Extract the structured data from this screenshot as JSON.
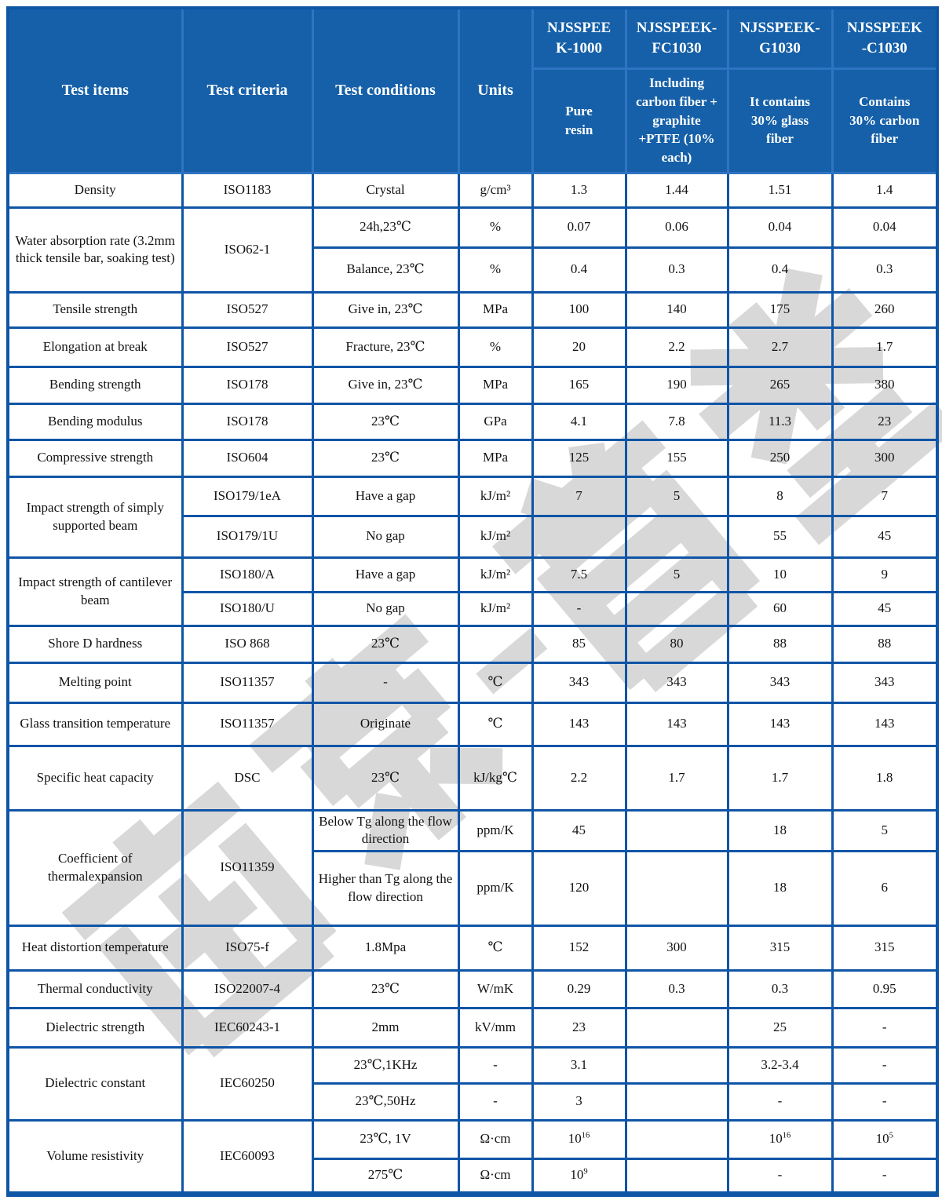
{
  "watermark": {
    "text": "南京-首塑"
  },
  "table": {
    "header": {
      "col_items": "Test items",
      "col_criteria": "Test criteria",
      "col_conditions": "Test conditions",
      "col_units": "Units",
      "products": [
        {
          "name": "NJSSPEE\nK-1000",
          "desc": "Pure\nresin"
        },
        {
          "name": "NJSSPEEK-\nFC1030",
          "desc": "Including\ncarbon fiber +\ngraphite\n+PTFE (10%\neach)"
        },
        {
          "name": "NJSSPEEK-\nG1030",
          "desc": "It contains\n30% glass\nfiber"
        },
        {
          "name": "NJSSPEEK\n-C1030",
          "desc": "Contains\n30% carbon\nfiber"
        }
      ]
    },
    "rows": [
      {
        "cells": [
          {
            "t": "Density"
          },
          {
            "t": "ISO1183"
          },
          {
            "t": "Crystal"
          },
          {
            "t": "g/cm³"
          },
          {
            "t": "1.3"
          },
          {
            "t": "1.44"
          },
          {
            "t": "1.51"
          },
          {
            "t": "1.4"
          }
        ]
      },
      {
        "cells": [
          {
            "t": "Water absorption rate (3.2mm thick tensile bar, soaking test)",
            "rs": 2
          },
          {
            "t": "ISO62-1",
            "rs": 2
          },
          {
            "t": "24h,23℃"
          },
          {
            "t": "%"
          },
          {
            "t": "0.07"
          },
          {
            "t": "0.06"
          },
          {
            "t": "0.04"
          },
          {
            "t": "0.04"
          }
        ]
      },
      {
        "cells": [
          {
            "t": "Balance, 23℃"
          },
          {
            "t": "%"
          },
          {
            "t": "0.4"
          },
          {
            "t": "0.3"
          },
          {
            "t": "0.4"
          },
          {
            "t": "0.3"
          }
        ]
      },
      {
        "cells": [
          {
            "t": "Tensile strength"
          },
          {
            "t": "ISO527"
          },
          {
            "t": "Give in, 23℃"
          },
          {
            "t": "MPa"
          },
          {
            "t": "100"
          },
          {
            "t": "140"
          },
          {
            "t": "175"
          },
          {
            "t": "260"
          }
        ]
      },
      {
        "cells": [
          {
            "t": "Elongation at break"
          },
          {
            "t": "ISO527"
          },
          {
            "t": "Fracture, 23℃"
          },
          {
            "t": "%"
          },
          {
            "t": "20"
          },
          {
            "t": "2.2"
          },
          {
            "t": "2.7"
          },
          {
            "t": "1.7"
          }
        ]
      },
      {
        "cells": [
          {
            "t": "Bending strength"
          },
          {
            "t": "ISO178"
          },
          {
            "t": "Give in, 23℃"
          },
          {
            "t": "MPa"
          },
          {
            "t": "165"
          },
          {
            "t": "190"
          },
          {
            "t": "265"
          },
          {
            "t": "380"
          }
        ]
      },
      {
        "cells": [
          {
            "t": "Bending modulus"
          },
          {
            "t": "ISO178"
          },
          {
            "t": "23℃"
          },
          {
            "t": "GPa"
          },
          {
            "t": "4.1"
          },
          {
            "t": "7.8"
          },
          {
            "t": "11.3"
          },
          {
            "t": "23"
          }
        ]
      },
      {
        "cells": [
          {
            "t": "Compressive strength"
          },
          {
            "t": "ISO604"
          },
          {
            "t": "23℃"
          },
          {
            "t": "MPa"
          },
          {
            "t": "125"
          },
          {
            "t": "155"
          },
          {
            "t": "250"
          },
          {
            "t": "300"
          }
        ]
      },
      {
        "cells": [
          {
            "t": "Impact strength of simply supported beam",
            "rs": 2
          },
          {
            "t": "ISO179/1eA"
          },
          {
            "t": "Have a gap"
          },
          {
            "t": "kJ/m²"
          },
          {
            "t": "7"
          },
          {
            "t": "5"
          },
          {
            "t": "8"
          },
          {
            "t": "7"
          }
        ]
      },
      {
        "cells": [
          {
            "t": "ISO179/1U"
          },
          {
            "t": "No gap"
          },
          {
            "t": "kJ/m²"
          },
          {
            "t": ""
          },
          {
            "t": ""
          },
          {
            "t": "55"
          },
          {
            "t": "45"
          }
        ]
      },
      {
        "cells": [
          {
            "t": "Impact strength of cantilever beam",
            "rs": 2
          },
          {
            "t": "ISO180/A"
          },
          {
            "t": "Have a gap"
          },
          {
            "t": "kJ/m²"
          },
          {
            "t": "7.5"
          },
          {
            "t": "5"
          },
          {
            "t": "10"
          },
          {
            "t": "9"
          }
        ]
      },
      {
        "cells": [
          {
            "t": "ISO180/U"
          },
          {
            "t": "No gap"
          },
          {
            "t": "kJ/m²"
          },
          {
            "t": "-"
          },
          {
            "t": ""
          },
          {
            "t": "60"
          },
          {
            "t": "45"
          }
        ]
      },
      {
        "cells": [
          {
            "t": "Shore D hardness"
          },
          {
            "t": "ISO 868"
          },
          {
            "t": "23℃"
          },
          {
            "t": ""
          },
          {
            "t": "85"
          },
          {
            "t": "80"
          },
          {
            "t": "88"
          },
          {
            "t": "88"
          }
        ]
      },
      {
        "cells": [
          {
            "t": "Melting point"
          },
          {
            "t": "ISO11357"
          },
          {
            "t": "-"
          },
          {
            "t": "℃"
          },
          {
            "t": "343"
          },
          {
            "t": "343"
          },
          {
            "t": "343"
          },
          {
            "t": "343"
          }
        ]
      },
      {
        "cells": [
          {
            "t": "Glass transition temperature"
          },
          {
            "t": "ISO11357"
          },
          {
            "t": "Originate"
          },
          {
            "t": "℃"
          },
          {
            "t": "143"
          },
          {
            "t": "143"
          },
          {
            "t": "143"
          },
          {
            "t": "143"
          }
        ]
      },
      {
        "cells": [
          {
            "t": "Specific heat capacity"
          },
          {
            "t": "DSC"
          },
          {
            "t": "23℃"
          },
          {
            "t": "kJ/kg℃"
          },
          {
            "t": "2.2"
          },
          {
            "t": "1.7"
          },
          {
            "t": "1.7"
          },
          {
            "t": "1.8"
          }
        ]
      },
      {
        "cells": [
          {
            "t": "Coefficient of thermalexpansion",
            "rs": 2
          },
          {
            "t": "ISO11359",
            "rs": 2
          },
          {
            "t": "Below Tg along the flow direction"
          },
          {
            "t": "ppm/K"
          },
          {
            "t": "45"
          },
          {
            "t": ""
          },
          {
            "t": "18"
          },
          {
            "t": "5"
          }
        ]
      },
      {
        "cells": [
          {
            "t": "Higher than Tg along the flow direction"
          },
          {
            "t": "ppm/K"
          },
          {
            "t": "120"
          },
          {
            "t": ""
          },
          {
            "t": "18"
          },
          {
            "t": "6"
          }
        ]
      },
      {
        "cells": [
          {
            "t": "Heat distortion temperature"
          },
          {
            "t": "ISO75-f"
          },
          {
            "t": "1.8Mpa"
          },
          {
            "t": "℃"
          },
          {
            "t": "152"
          },
          {
            "t": "300"
          },
          {
            "t": "315"
          },
          {
            "t": "315"
          }
        ]
      },
      {
        "cells": [
          {
            "t": "Thermal conductivity"
          },
          {
            "t": "ISO22007-4"
          },
          {
            "t": "23℃"
          },
          {
            "t": "W/mK"
          },
          {
            "t": "0.29"
          },
          {
            "t": "0.3"
          },
          {
            "t": "0.3"
          },
          {
            "t": "0.95"
          }
        ]
      },
      {
        "cells": [
          {
            "t": "Dielectric strength"
          },
          {
            "t": "IEC60243-1"
          },
          {
            "t": "2mm"
          },
          {
            "t": "kV/mm"
          },
          {
            "t": "23"
          },
          {
            "t": ""
          },
          {
            "t": "25"
          },
          {
            "t": "-"
          }
        ]
      },
      {
        "cells": [
          {
            "t": "Dielectric constant",
            "rs": 2
          },
          {
            "t": "IEC60250",
            "rs": 2
          },
          {
            "t": "23℃,1KHz"
          },
          {
            "t": "-"
          },
          {
            "t": "3.1"
          },
          {
            "t": ""
          },
          {
            "t": "3.2-3.4"
          },
          {
            "t": "-"
          }
        ]
      },
      {
        "cells": [
          {
            "t": "23℃,50Hz"
          },
          {
            "t": "-"
          },
          {
            "t": "3"
          },
          {
            "t": ""
          },
          {
            "t": "-"
          },
          {
            "t": "-"
          }
        ]
      },
      {
        "cells": [
          {
            "t": "Volume resistivity",
            "rs": 2
          },
          {
            "t": "IEC60093",
            "rs": 2
          },
          {
            "t": "23℃, 1V"
          },
          {
            "t": "Ω·cm"
          },
          {
            "t": "10^16"
          },
          {
            "t": ""
          },
          {
            "t": "10^16"
          },
          {
            "t": "10^5"
          }
        ]
      },
      {
        "cells": [
          {
            "t": "275℃"
          },
          {
            "t": "Ω·cm"
          },
          {
            "t": "10^9"
          },
          {
            "t": ""
          },
          {
            "t": "-"
          },
          {
            "t": "-"
          }
        ]
      }
    ]
  }
}
